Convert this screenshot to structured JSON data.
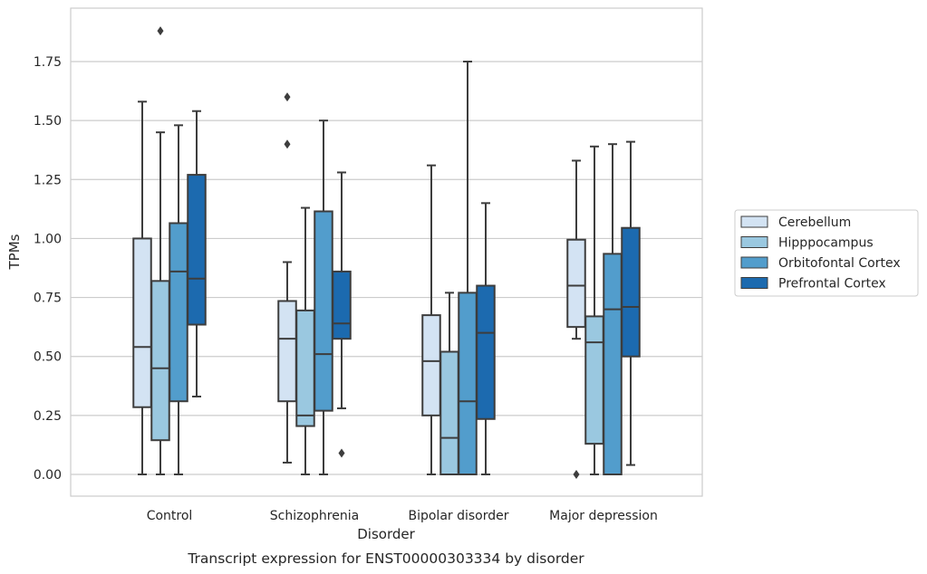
{
  "chart_data": {
    "type": "box",
    "title": "Transcript expression for ENST00000303334 by disorder",
    "xlabel": "Disorder",
    "ylabel": "TPMs",
    "ylim": [
      -0.09,
      1.97
    ],
    "yticks": [
      "0.00",
      "0.25",
      "0.50",
      "0.75",
      "1.00",
      "1.25",
      "1.50",
      "1.75"
    ],
    "grid": "horizontal",
    "legend_position": "right",
    "categories": [
      "Control",
      "Schizophrenia",
      "Bipolar disorder",
      "Major depression"
    ],
    "series": [
      {
        "name": "Cerebellum",
        "color": "#d3e3f3",
        "boxes": [
          {
            "whislo": 0.0,
            "q1": 0.285,
            "med": 0.54,
            "q3": 1.0,
            "whishi": 1.58,
            "fliers": []
          },
          {
            "whislo": 0.05,
            "q1": 0.31,
            "med": 0.575,
            "q3": 0.735,
            "whishi": 0.9,
            "fliers": [
              1.4,
              1.6
            ]
          },
          {
            "whislo": 0.0,
            "q1": 0.25,
            "med": 0.48,
            "q3": 0.675,
            "whishi": 1.31,
            "fliers": []
          },
          {
            "whislo": 0.575,
            "q1": 0.625,
            "med": 0.8,
            "q3": 0.995,
            "whishi": 1.33,
            "fliers": [
              0.0
            ]
          }
        ]
      },
      {
        "name": "Hipppocampus",
        "color": "#9ac8e0",
        "boxes": [
          {
            "whislo": 0.0,
            "q1": 0.145,
            "med": 0.45,
            "q3": 0.82,
            "whishi": 1.45,
            "fliers": [
              1.88
            ]
          },
          {
            "whislo": 0.0,
            "q1": 0.205,
            "med": 0.25,
            "q3": 0.695,
            "whishi": 1.13,
            "fliers": []
          },
          {
            "whislo": 0.0,
            "q1": 0.0,
            "med": 0.155,
            "q3": 0.52,
            "whishi": 0.77,
            "fliers": []
          },
          {
            "whislo": 0.0,
            "q1": 0.13,
            "med": 0.56,
            "q3": 0.67,
            "whishi": 1.39,
            "fliers": []
          }
        ]
      },
      {
        "name": "Orbitofontal Cortex",
        "color": "#529dcc",
        "boxes": [
          {
            "whislo": 0.0,
            "q1": 0.31,
            "med": 0.86,
            "q3": 1.065,
            "whishi": 1.48,
            "fliers": []
          },
          {
            "whislo": 0.0,
            "q1": 0.27,
            "med": 0.51,
            "q3": 1.115,
            "whishi": 1.5,
            "fliers": []
          },
          {
            "whislo": 0.0,
            "q1": 0.0,
            "med": 0.31,
            "q3": 0.77,
            "whishi": 1.75,
            "fliers": []
          },
          {
            "whislo": 0.0,
            "q1": 0.0,
            "med": 0.7,
            "q3": 0.935,
            "whishi": 1.4,
            "fliers": []
          }
        ]
      },
      {
        "name": "Prefrontal Cortex",
        "color": "#1c6aaf",
        "boxes": [
          {
            "whislo": 0.33,
            "q1": 0.635,
            "med": 0.83,
            "q3": 1.27,
            "whishi": 1.54,
            "fliers": []
          },
          {
            "whislo": 0.28,
            "q1": 0.575,
            "med": 0.64,
            "q3": 0.86,
            "whishi": 1.28,
            "fliers": [
              0.09
            ]
          },
          {
            "whislo": 0.0,
            "q1": 0.235,
            "med": 0.6,
            "q3": 0.8,
            "whishi": 1.15,
            "fliers": []
          },
          {
            "whislo": 0.04,
            "q1": 0.5,
            "med": 0.71,
            "q3": 1.045,
            "whishi": 1.41,
            "fliers": []
          }
        ]
      }
    ]
  }
}
